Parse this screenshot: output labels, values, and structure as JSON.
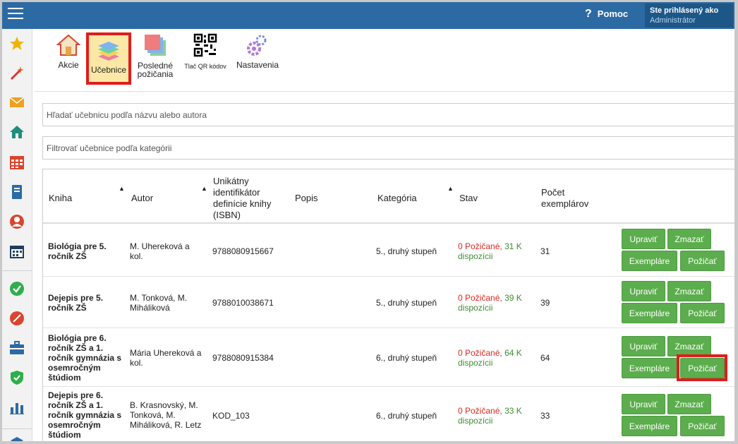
{
  "header": {
    "help_label": "Pomoc",
    "user_line1": "Ste prihlásený ako",
    "user_line2": "Administrátor"
  },
  "sidebar": [
    "star-icon",
    "magic-wand-icon",
    "envelope-icon",
    "home-icon",
    "calendar-grid-icon",
    "notebook-icon",
    "user-circle-icon",
    "calendar-icon",
    "check-circle-icon",
    "ban-circle-icon",
    "briefcase-icon",
    "shield-check-icon",
    "bar-chart-icon",
    "layers-icon"
  ],
  "toolbar": {
    "akcie": "Akcie",
    "ucebnice": "Učebnice",
    "posledne_1": "Posledné",
    "posledne_2": "požičania",
    "qr": "Tlač QR kódov",
    "nastavenia": "Nastavenia"
  },
  "search": {
    "placeholder_books": "Hľadať učebnicu podľa názvu alebo autora",
    "placeholder_category": "Filtrovať učebnice podľa kategórii"
  },
  "table": {
    "headers": {
      "kniha": "Kniha",
      "autor": "Autor",
      "isbn_1": "Unikátny",
      "isbn_2": "identifikátor",
      "isbn_3": "definície knihy",
      "isbn_4": "(ISBN)",
      "popis": "Popis",
      "kategoria": "Kategória",
      "stav": "Stav",
      "pocet_1": "Počet",
      "pocet_2": "exemplárov"
    },
    "rows": [
      {
        "title": [
          "Biológia pre 5.",
          "ročník ZŠ"
        ],
        "author": [
          "M. Uhereková a",
          "kol."
        ],
        "isbn": "9788080915667",
        "category": "5., druhý stupeň",
        "lent": "0 Požičané,",
        "avail_1": "31 K",
        "avail_2": "dispozícii",
        "count": "31"
      },
      {
        "title": [
          "Dejepis pre 5.",
          "ročník ZŠ"
        ],
        "author": [
          "M. Tonková, M.",
          "Miháliková"
        ],
        "isbn": "9788010038671",
        "category": "5., druhý stupeň",
        "lent": "0 Požičané,",
        "avail_1": "39 K",
        "avail_2": "dispozícii",
        "count": "39"
      },
      {
        "title": [
          "Biológia pre 6.",
          "ročník ZŠ a 1.",
          "ročník gymnázia s",
          "osemročným",
          "štúdiom"
        ],
        "author": [
          "Mária Uhereková a",
          "kol."
        ],
        "isbn": "9788080915384",
        "category": "6., druhý stupeň",
        "lent": "0 Požičané,",
        "avail_1": "64 K",
        "avail_2": "dispozícii",
        "count": "64"
      },
      {
        "title": [
          "Dejepis pre 6.",
          "ročník ZŠ a 1.",
          "ročník gymnázia s",
          "osemročným",
          "štúdiom"
        ],
        "author": [
          "B. Krasnovský, M.",
          "Tonková, M.",
          "Miháliková, R. Letz"
        ],
        "isbn": "KOD_103",
        "category": "6., druhý stupeň",
        "lent": "0 Požičané,",
        "avail_1": "33 K",
        "avail_2": "dispozícii",
        "count": "33"
      }
    ],
    "buttons": {
      "edit": "Upraviť",
      "delete": "Zmazať",
      "copies": "Exempláre",
      "lend": "Požičať"
    }
  }
}
